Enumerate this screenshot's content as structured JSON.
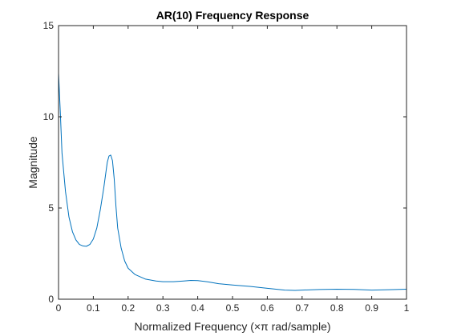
{
  "chart_data": {
    "type": "line",
    "title": "AR(10) Frequency Response",
    "xlabel": "Normalized Frequency (×π rad/sample)",
    "ylabel": "Magnitude",
    "xlim": [
      0,
      1
    ],
    "ylim": [
      0,
      15
    ],
    "x_ticks": [
      0,
      0.1,
      0.2,
      0.3,
      0.4,
      0.5,
      0.6,
      0.7,
      0.8,
      0.9,
      1
    ],
    "x_tick_labels": [
      "0",
      "0.1",
      "0.2",
      "0.3",
      "0.4",
      "0.5",
      "0.6",
      "0.7",
      "0.8",
      "0.9",
      "1"
    ],
    "y_ticks": [
      0,
      5,
      10,
      15
    ],
    "y_tick_labels": [
      "0",
      "5",
      "10",
      "15"
    ],
    "grid": false,
    "line_color": "#0072BD",
    "series": [
      {
        "x": [
          0,
          0.005,
          0.01,
          0.02,
          0.03,
          0.04,
          0.05,
          0.06,
          0.07,
          0.08,
          0.09,
          0.1,
          0.11,
          0.12,
          0.13,
          0.14,
          0.145,
          0.15,
          0.155,
          0.16,
          0.165,
          0.17,
          0.18,
          0.19,
          0.2,
          0.22,
          0.25,
          0.28,
          0.3,
          0.33,
          0.36,
          0.38,
          0.4,
          0.43,
          0.46,
          0.5,
          0.55,
          0.6,
          0.65,
          0.68,
          0.7,
          0.75,
          0.8,
          0.85,
          0.9,
          0.95,
          1.0
        ],
        "y": [
          12.4,
          10.3,
          8.0,
          5.9,
          4.5,
          3.7,
          3.25,
          3.0,
          2.92,
          2.9,
          3.0,
          3.3,
          3.9,
          4.9,
          6.1,
          7.5,
          7.85,
          7.9,
          7.6,
          6.6,
          5.1,
          3.9,
          2.8,
          2.1,
          1.7,
          1.35,
          1.1,
          1.0,
          0.96,
          0.96,
          1.0,
          1.03,
          1.02,
          0.95,
          0.85,
          0.78,
          0.7,
          0.6,
          0.5,
          0.48,
          0.5,
          0.53,
          0.55,
          0.54,
          0.5,
          0.52,
          0.55
        ]
      }
    ]
  }
}
